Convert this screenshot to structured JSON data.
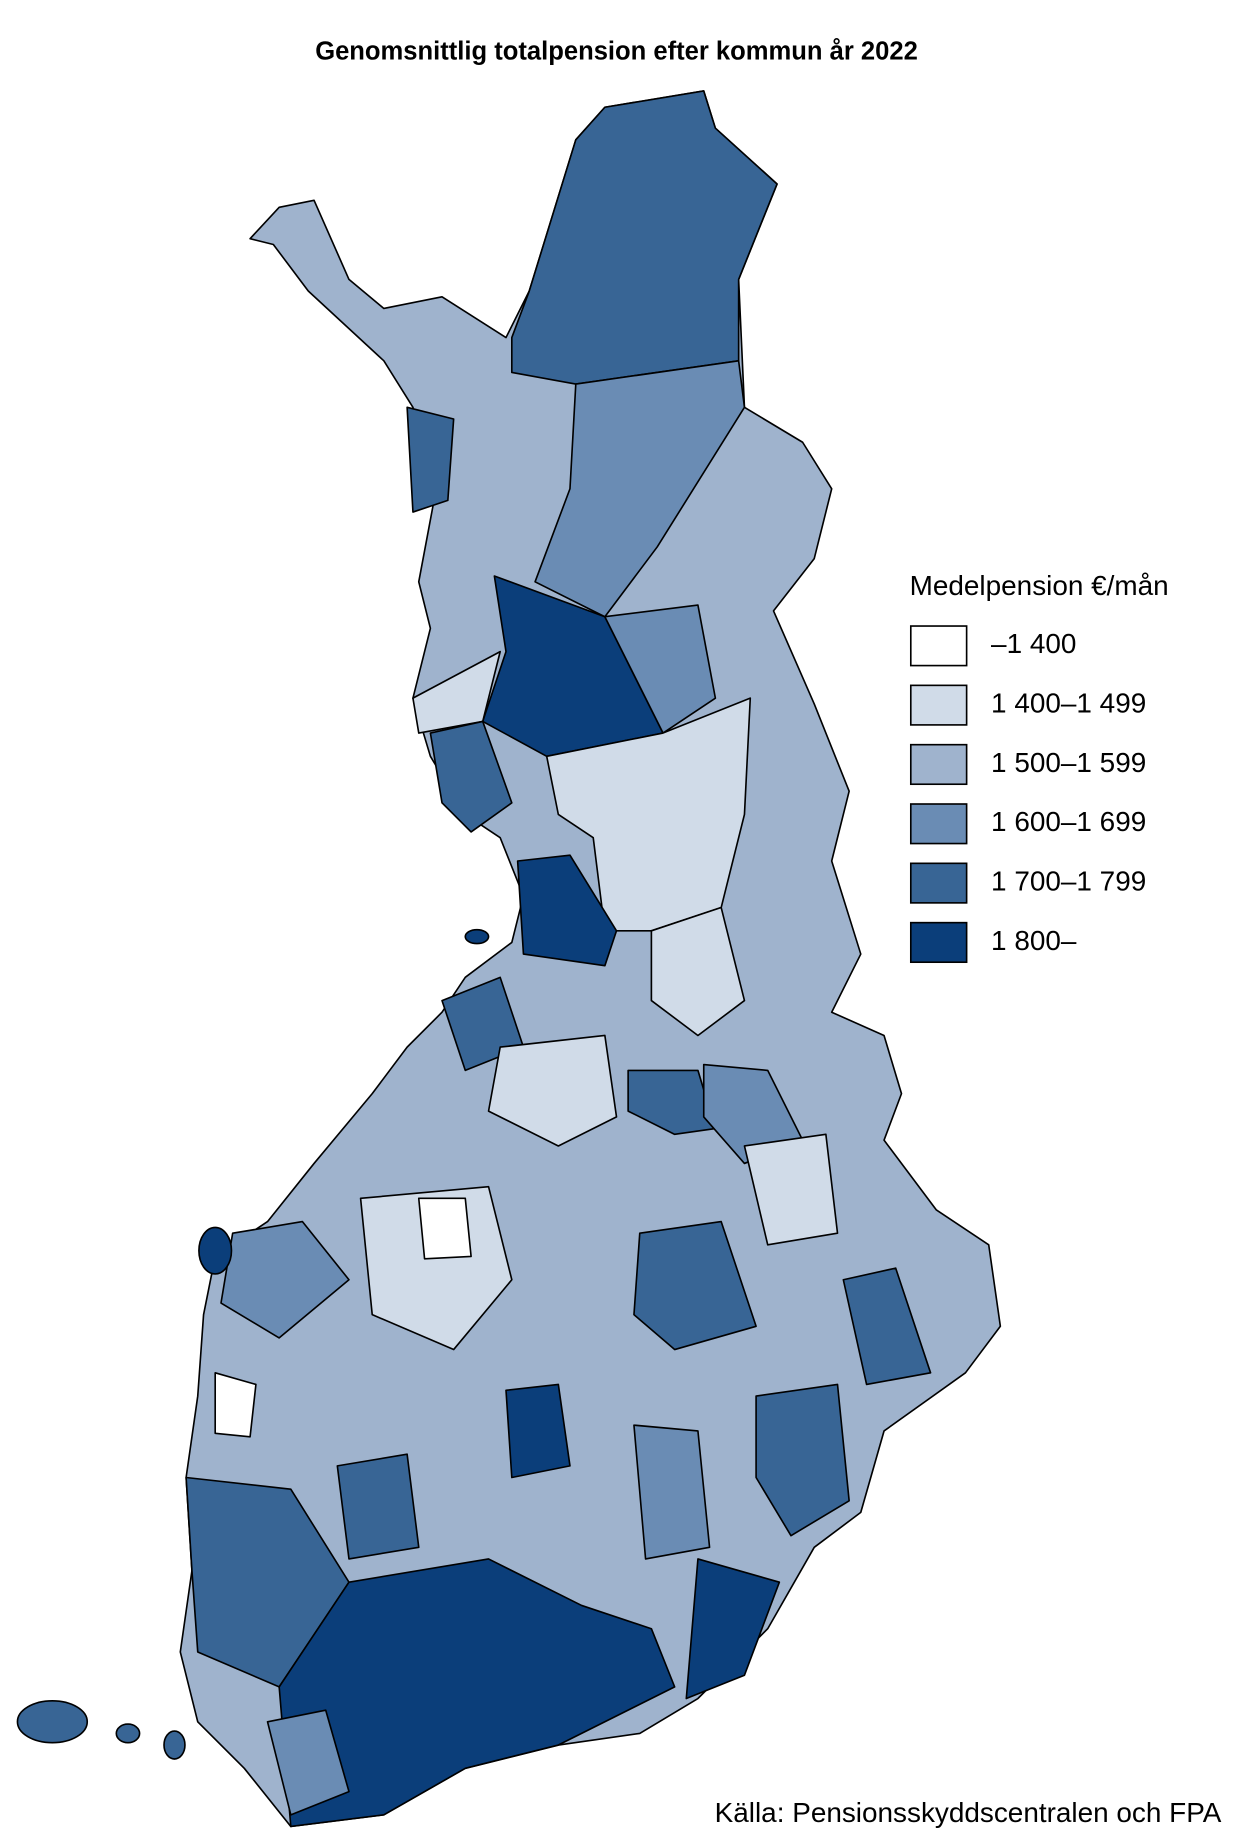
{
  "title": "Genomsnittlig totalpension efter kommun år 2022",
  "legend": {
    "title": "Medelpension €/mån",
    "items": [
      {
        "label": "–1 400",
        "color": "#ffffff"
      },
      {
        "label": "1 400–1 499",
        "color": "#d0dbe8"
      },
      {
        "label": "1 500–1 599",
        "color": "#9fb3cd"
      },
      {
        "label": "1 600–1 699",
        "color": "#6a8cb4"
      },
      {
        "label": "1 700–1 799",
        "color": "#386595"
      },
      {
        "label": "1 800–",
        "color": "#0b3e7a"
      }
    ]
  },
  "source": "Källa: Pensionsskyddscentralen och FPA"
}
